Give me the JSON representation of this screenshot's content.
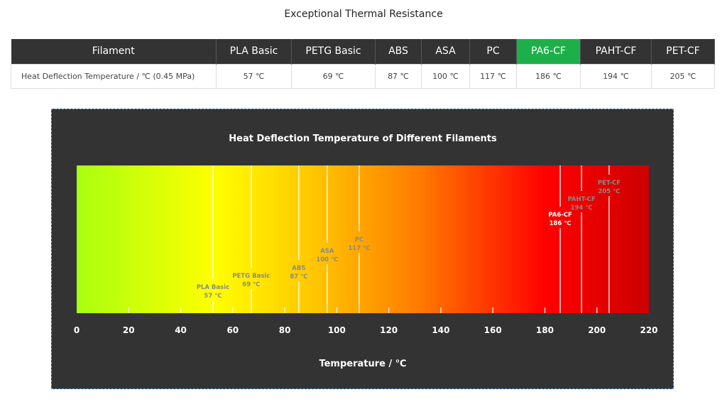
{
  "page_title": "Exceptional Thermal Resistance",
  "table": {
    "header": [
      "Filament",
      "PLA Basic",
      "PETG Basic",
      "ABS",
      "ASA",
      "PC",
      "PA6-CF",
      "PAHT-CF",
      "PET-CF"
    ],
    "highlight": "PA6-CF",
    "highlight_color": "#1db04a",
    "row_label": "Heat Deflection Temperature / ℃ (0.45 MPa)",
    "values": [
      "57 ℃",
      "69 ℃",
      "87 ℃",
      "100 ℃",
      "117 ℃",
      "186 ℃",
      "194 ℃",
      "205 ℃"
    ]
  },
  "chart_data": {
    "type": "bar",
    "title": "Heat Deflection Temperature of Different Filaments",
    "xlabel": "Temperature / ℃",
    "xlim": [
      0,
      220
    ],
    "xticks": [
      0,
      20,
      40,
      60,
      80,
      100,
      120,
      140,
      160,
      180,
      200,
      220
    ],
    "grid": false,
    "markers": [
      {
        "name": "PLA Basic",
        "value": 57,
        "label": "57 ℃",
        "marker_pos": 52.4,
        "highlight": false
      },
      {
        "name": "PETG Basic",
        "value": 69,
        "label": "69 ℃",
        "marker_pos": 67.1,
        "highlight": false
      },
      {
        "name": "ABS",
        "value": 87,
        "label": "87 ℃",
        "marker_pos": 85.4,
        "highlight": false
      },
      {
        "name": "ASA",
        "value": 100,
        "label": "100 ℃",
        "marker_pos": 96.3,
        "highlight": false
      },
      {
        "name": "PC",
        "value": 117,
        "label": "117 ℃",
        "marker_pos": 108.6,
        "highlight": false
      },
      {
        "name": "PA6-CF",
        "value": 186,
        "label": "186 ℃",
        "marker_pos": 185.9,
        "highlight": true
      },
      {
        "name": "PAHT-CF",
        "value": 194,
        "label": "194 ℃",
        "marker_pos": 194.1,
        "highlight": false
      },
      {
        "name": "PET-CF",
        "value": 205,
        "label": "205 ℃",
        "marker_pos": 204.7,
        "highlight": false
      }
    ]
  }
}
